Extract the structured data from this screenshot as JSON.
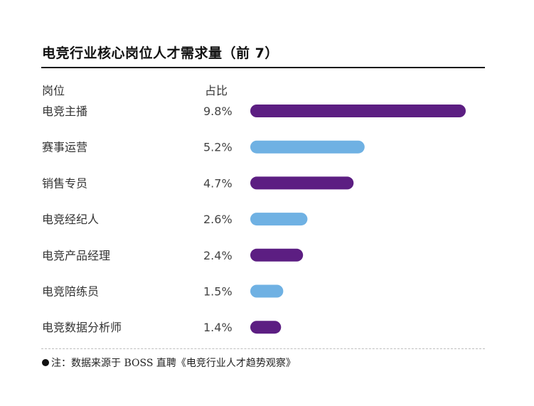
{
  "chart_data": {
    "type": "bar",
    "orientation": "horizontal",
    "title": "电竞行业核心岗位人才需求量（前 7）",
    "column_headers": [
      "岗位",
      "占比"
    ],
    "categories": [
      "电竞主播",
      "赛事运营",
      "销售专员",
      "电竞经纪人",
      "电竞产品经理",
      "电竞陪练员",
      "电竞数据分析师"
    ],
    "values": [
      9.8,
      5.2,
      4.7,
      2.6,
      2.4,
      1.5,
      1.4
    ],
    "value_labels": [
      "9.8%",
      "5.2%",
      "4.7%",
      "2.6%",
      "2.4%",
      "1.5%",
      "1.4%"
    ],
    "unit": "%",
    "bar_colors": [
      "#5c1e82",
      "#6fb1e3",
      "#5c1e82",
      "#6fb1e3",
      "#5c1e82",
      "#6fb1e3",
      "#5c1e82"
    ],
    "xlim": [
      0,
      9.8
    ],
    "grid": false,
    "legend": "none"
  },
  "footnote": {
    "text": "注：数据来源于 BOSS 直聘《电竞行业人才趋势观察》"
  },
  "colors": {
    "purple": "#5c1e82",
    "blue": "#6fb1e3"
  }
}
